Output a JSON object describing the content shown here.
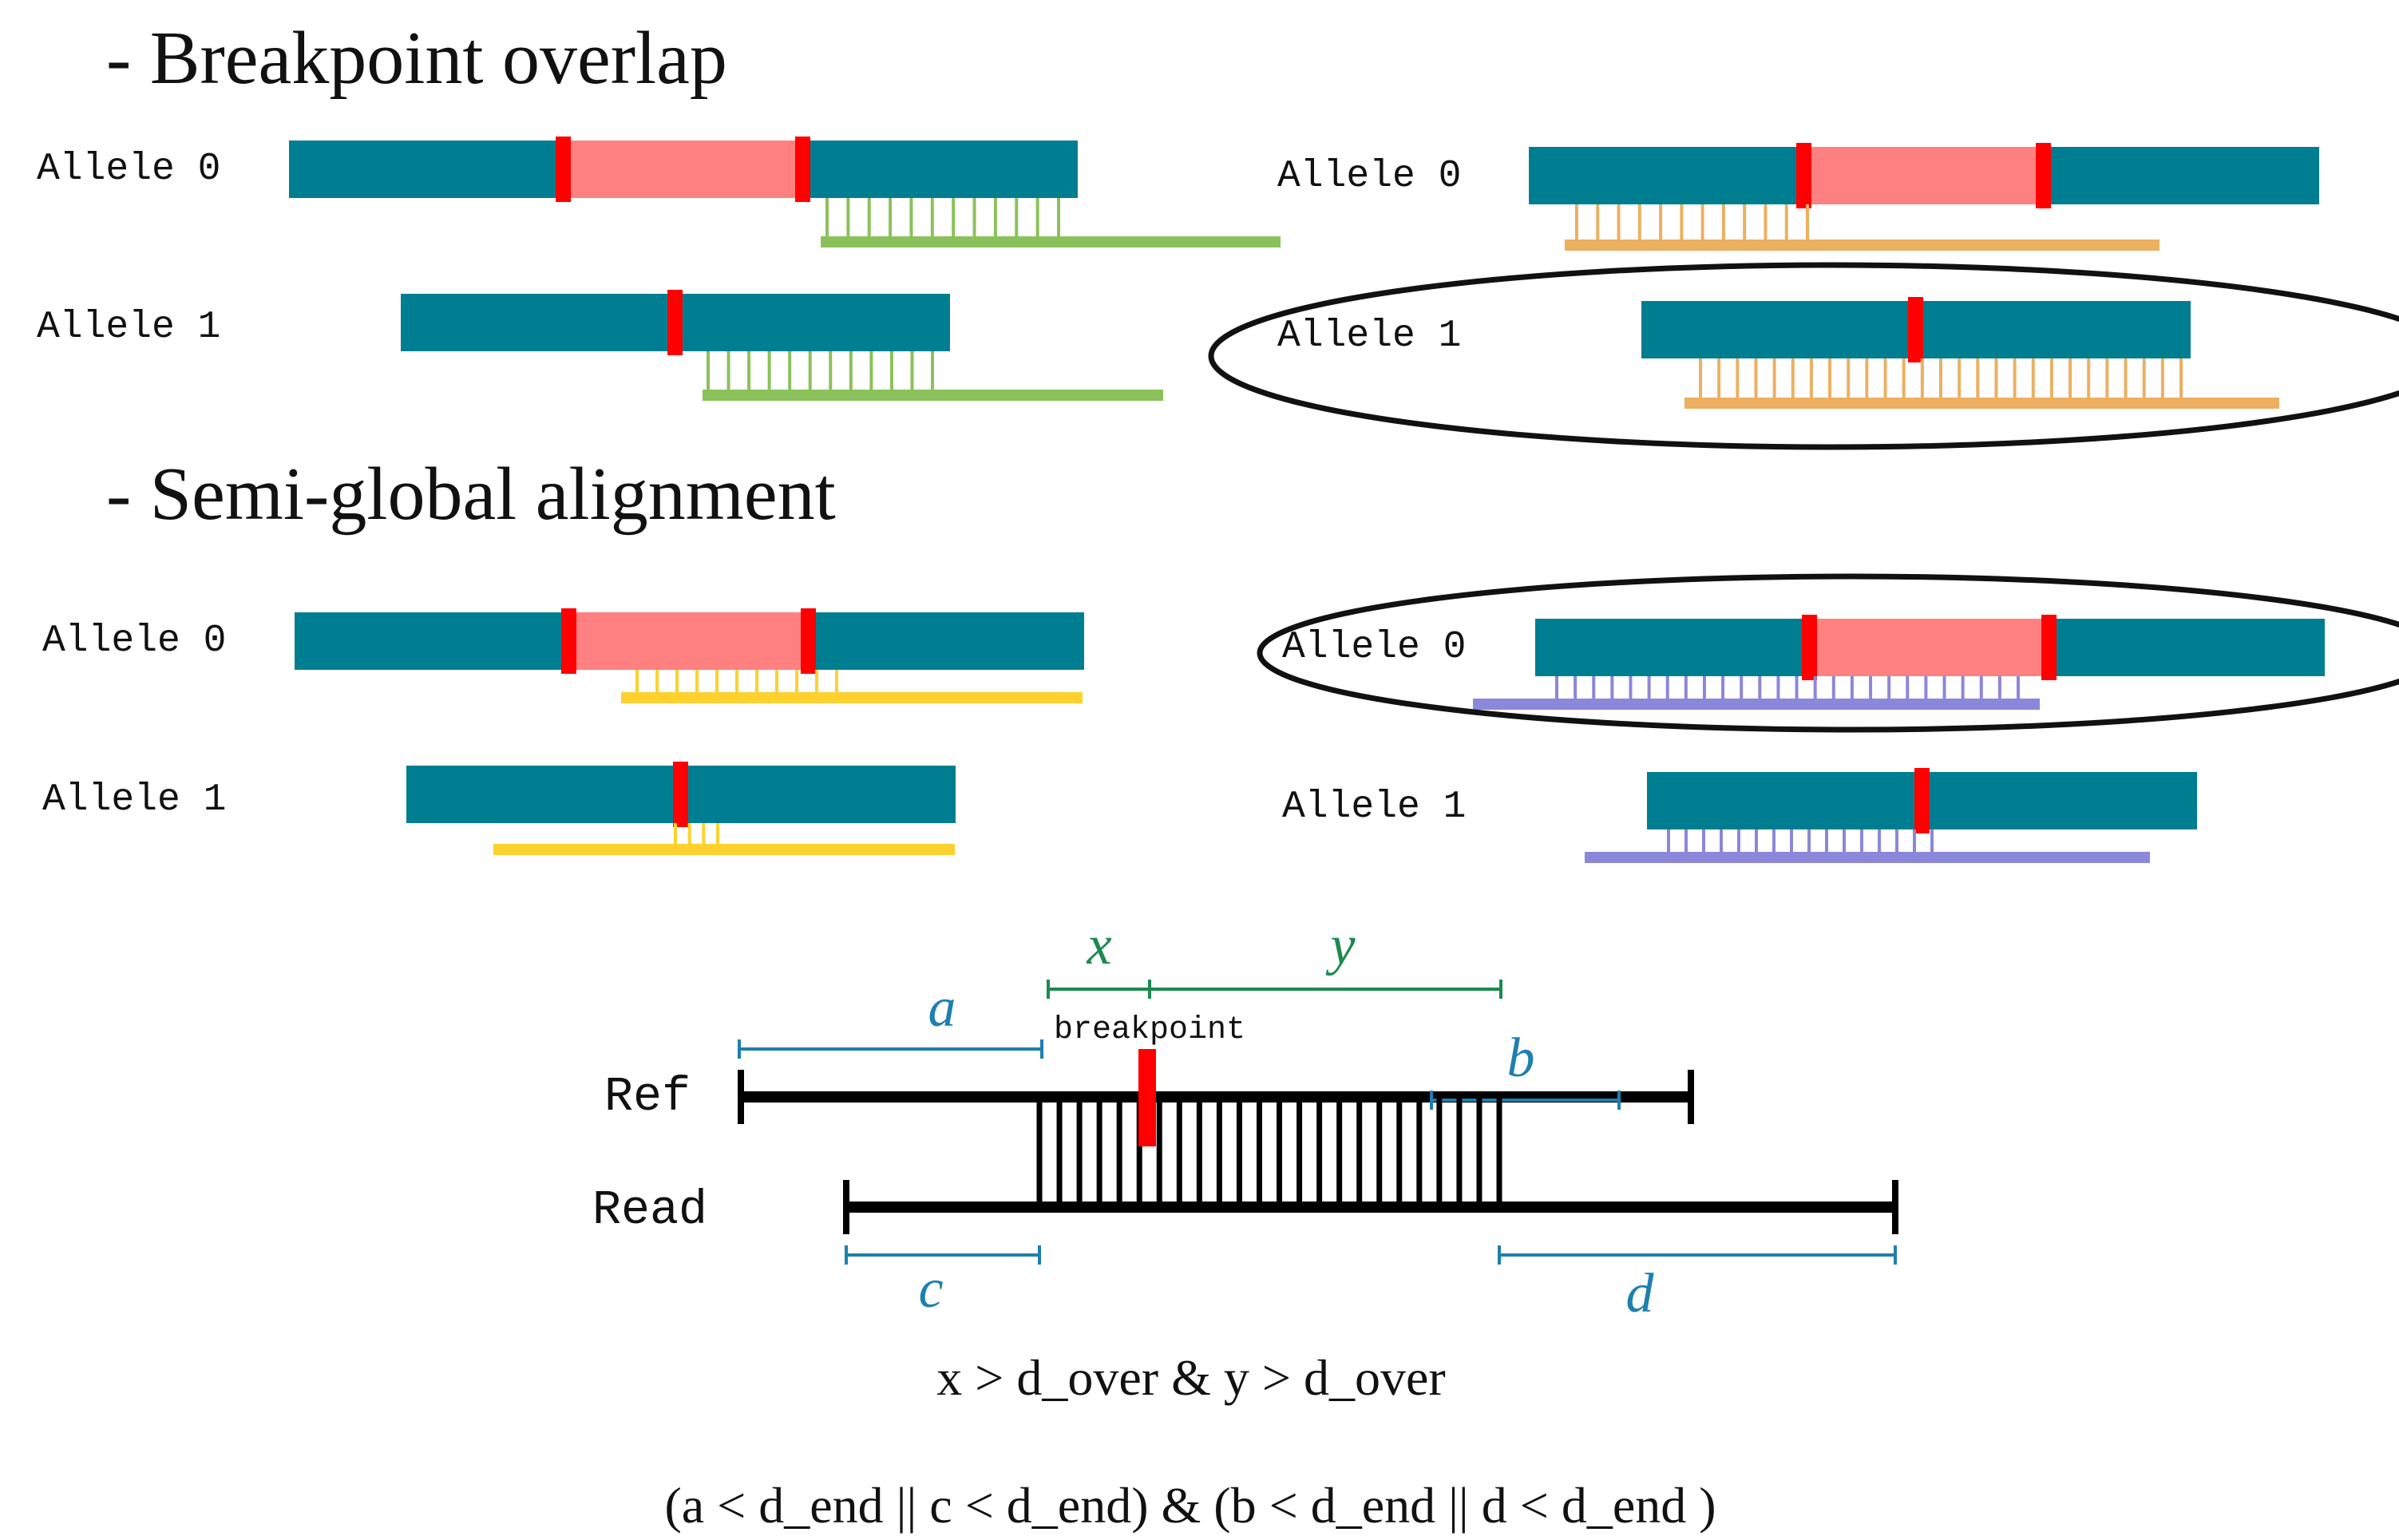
{
  "sections": {
    "breakpoint_overlap": {
      "title": "- Breakpoint overlap",
      "left": {
        "allele0_label": "Allele 0",
        "allele1_label": "Allele 1"
      },
      "right": {
        "allele0_label": "Allele 0",
        "allele1_label": "Allele 1",
        "highlighted": "Allele 1"
      }
    },
    "semi_global": {
      "title": "- Semi-global alignment",
      "left": {
        "allele0_label": "Allele 0",
        "allele1_label": "Allele 1"
      },
      "right": {
        "allele0_label": "Allele 0",
        "allele1_label": "Allele 1",
        "highlighted": "Allele 0"
      }
    }
  },
  "schematic": {
    "ref_label": "Ref",
    "read_label": "Read",
    "breakpoint_label": "breakpoint",
    "labels": {
      "a": "a",
      "b": "b",
      "c": "c",
      "d": "d",
      "x": "x",
      "y": "y"
    }
  },
  "formulas": {
    "line1": "x > d_over & y > d_over",
    "line2": "(a < d_end || c < d_end) & (b < d_end || d < d_end )"
  },
  "colors": {
    "allele_teal": "#007E91",
    "deletion_pink": "#FF8080",
    "breakpoint_red": "#FF0000",
    "read_green": "#8BC15A",
    "read_orange": "#EBB061",
    "read_yellow": "#FFD12F",
    "read_purple": "#8B87DA",
    "label_blue": "#1E7FB0",
    "label_green": "#1C8A4F",
    "line_black": "#000000",
    "ellipse_stroke": "#111111"
  }
}
